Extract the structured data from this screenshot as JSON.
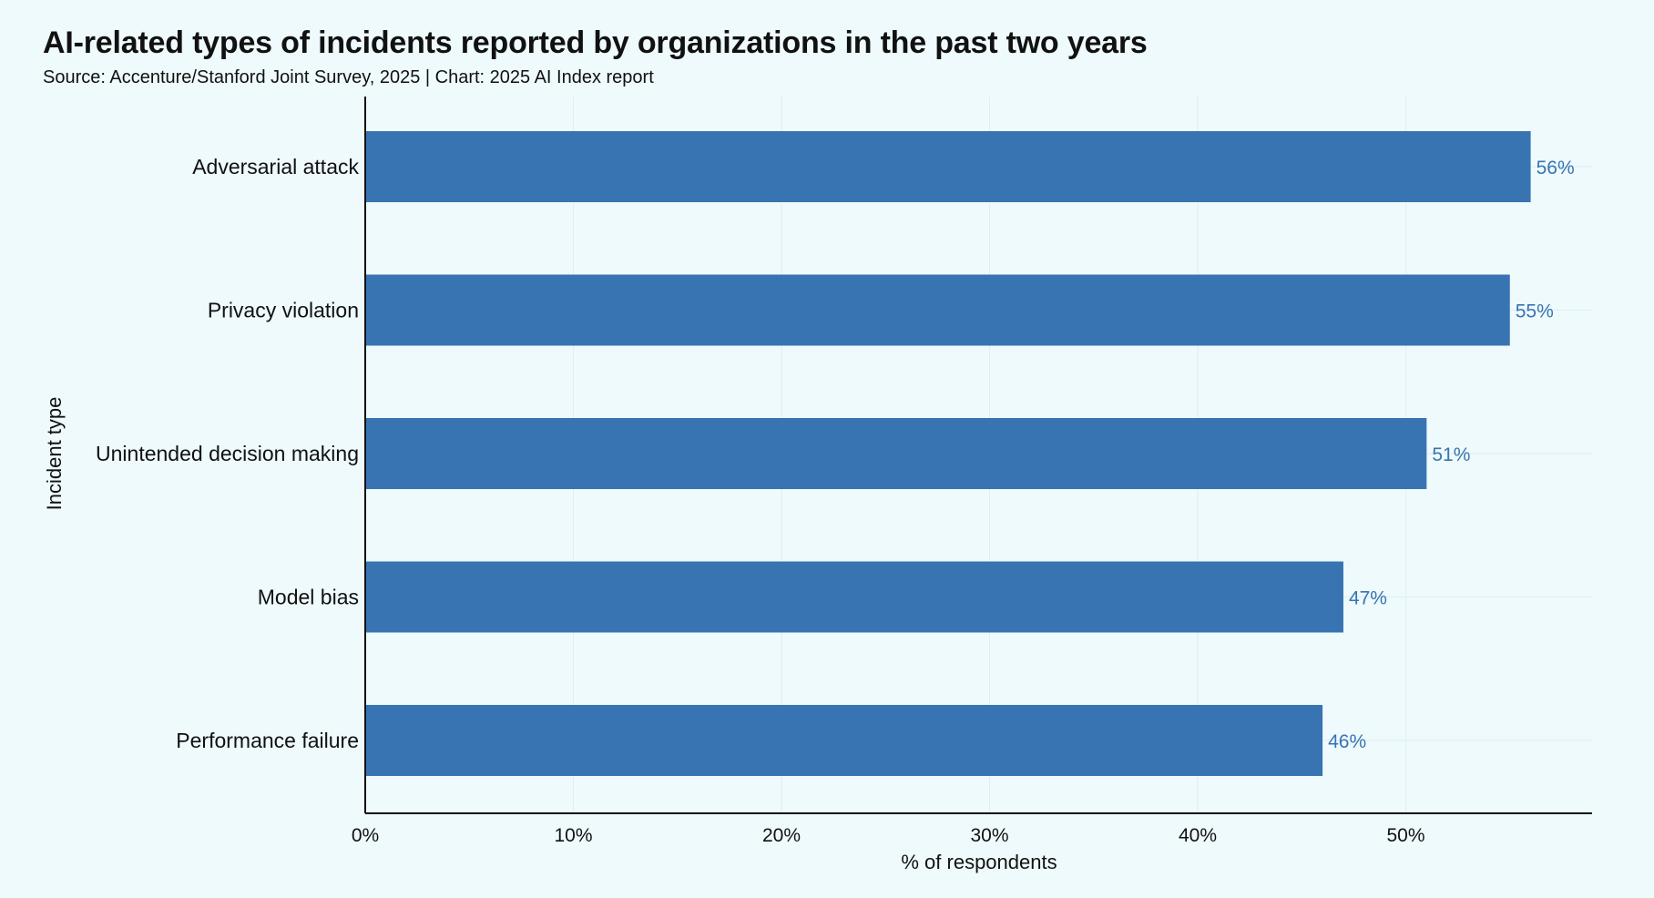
{
  "title": "AI-related types of incidents reported by organizations in the past two years",
  "subtitle": "Source: Accenture/Stanford Joint Survey, 2025 | Chart: 2025 AI Index report",
  "colors": {
    "background": "#eefafc",
    "bar": "#3874b2",
    "value_label": "#3874b2",
    "axis": "#111111",
    "grid": "#dfeff3"
  },
  "chart_data": {
    "type": "bar",
    "orientation": "horizontal",
    "categories": [
      "Adversarial attack",
      "Privacy violation",
      "Unintended decision making",
      "Model bias",
      "Performance failure"
    ],
    "values": [
      56,
      55,
      51,
      47,
      46
    ],
    "value_labels": [
      "56%",
      "55%",
      "51%",
      "47%",
      "46%"
    ],
    "xlabel": "% of respondents",
    "ylabel": "Incident type",
    "xlim": [
      0,
      59
    ],
    "xticks": [
      0,
      10,
      20,
      30,
      40,
      50
    ],
    "xtick_labels": [
      "0%",
      "10%",
      "20%",
      "30%",
      "40%",
      "50%"
    ],
    "grid": true
  }
}
